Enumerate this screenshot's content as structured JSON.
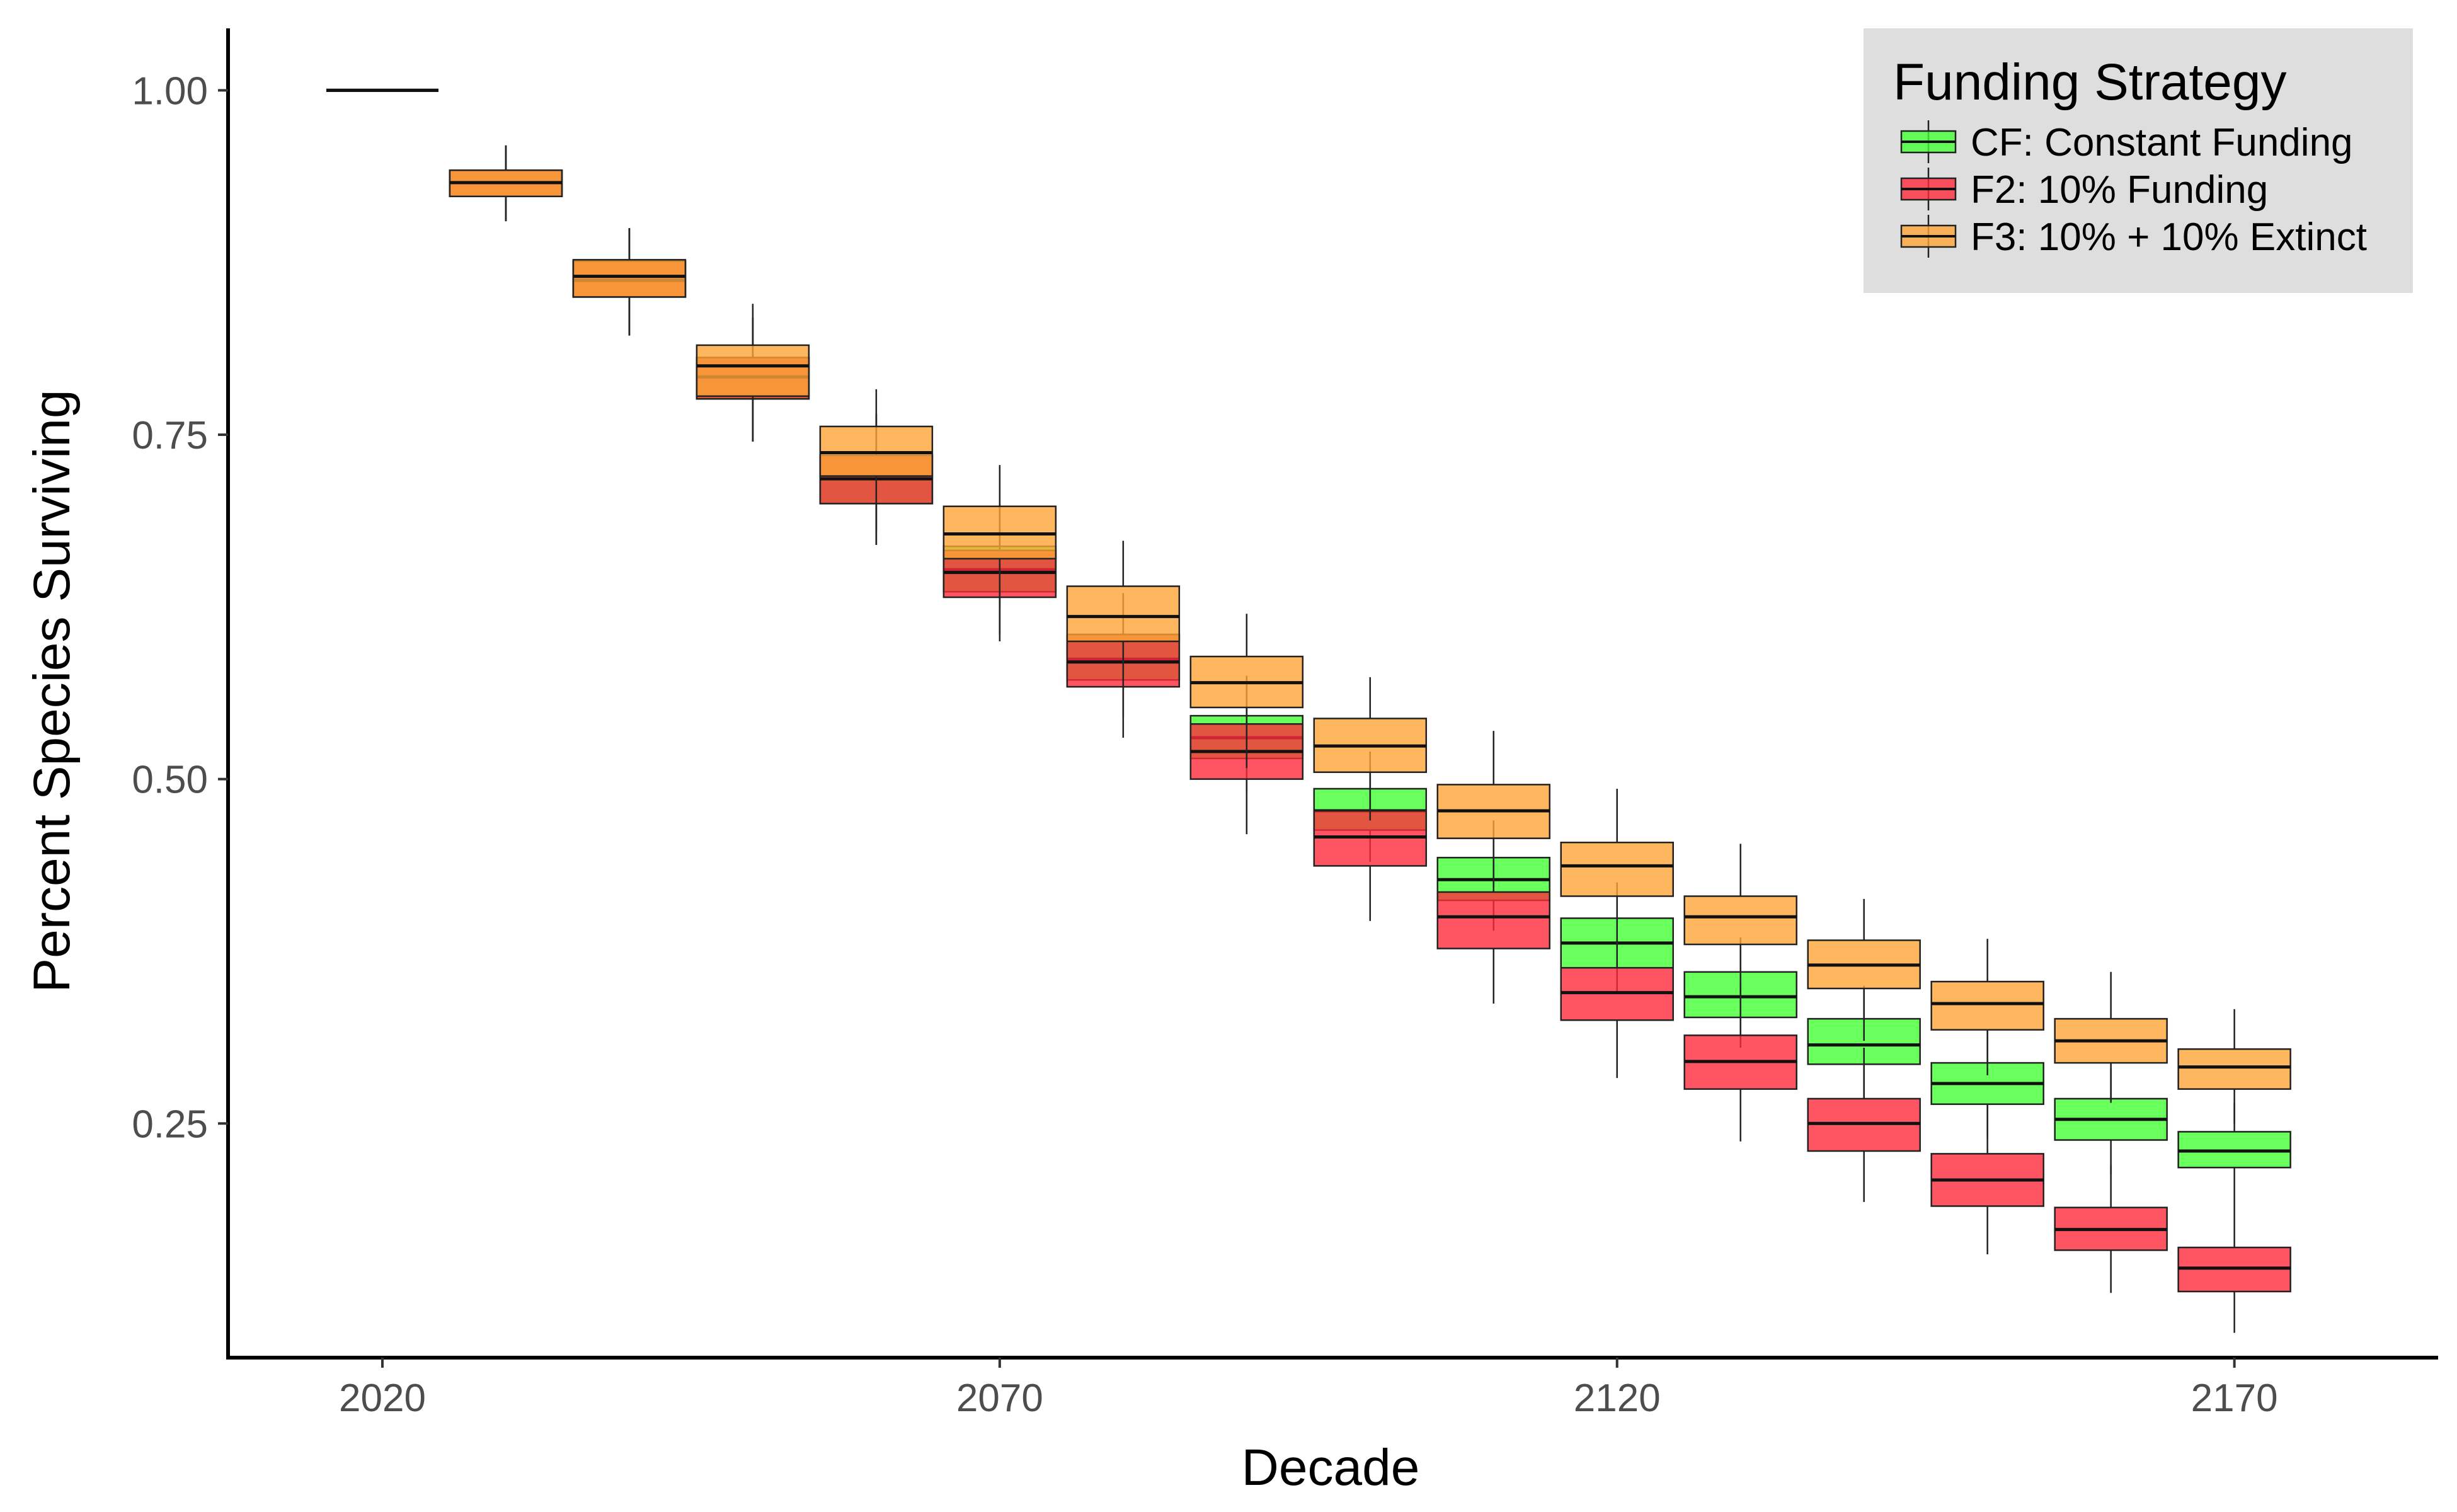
{
  "chart_data": {
    "type": "box",
    "xlabel": "Decade",
    "ylabel": "Percent Species Surviving",
    "x_ticks": [
      2020,
      2070,
      2120,
      2170
    ],
    "y_ticks": [
      "0.25",
      "0.50",
      "0.75",
      "1.00"
    ],
    "y_tick_values": [
      0.25,
      0.5,
      0.75,
      1.0
    ],
    "xlim": [
      2007.5,
      2186.5
    ],
    "ylim": [
      0.08,
      1.045
    ],
    "grid": false,
    "legend": {
      "title": "Funding Strategy",
      "position": "top-right",
      "entries": [
        "CF: Constant Funding",
        "F2: 10% Funding",
        "F3: 10% + 10% Extinct"
      ]
    },
    "colors": {
      "CF: Constant Funding": "#44ff33",
      "F2: 10% Funding": "#ff2b3b",
      "F3: 10% + 10% Extinct": "#ffa537"
    },
    "series": [
      {
        "name": "CF: Constant Funding",
        "boxes": [
          {
            "x": 2020,
            "min": 1.0,
            "q1": 1.0,
            "median": 1.0,
            "q3": 1.0,
            "max": 1.0
          },
          {
            "x": 2030,
            "min": 0.905,
            "q1": 0.923,
            "median": 0.933,
            "q3": 0.942,
            "max": 0.96
          },
          {
            "x": 2040,
            "min": 0.822,
            "q1": 0.85,
            "median": 0.862,
            "q3": 0.876,
            "max": 0.9
          },
          {
            "x": 2050,
            "min": 0.745,
            "q1": 0.776,
            "median": 0.792,
            "q3": 0.806,
            "max": 0.835
          },
          {
            "x": 2060,
            "min": 0.67,
            "q1": 0.7,
            "median": 0.718,
            "q3": 0.735,
            "max": 0.765
          },
          {
            "x": 2070,
            "min": 0.605,
            "q1": 0.636,
            "median": 0.652,
            "q3": 0.669,
            "max": 0.7
          },
          {
            "x": 2080,
            "min": 0.545,
            "q1": 0.572,
            "median": 0.587,
            "q3": 0.605,
            "max": 0.635
          },
          {
            "x": 2090,
            "min": 0.49,
            "q1": 0.515,
            "median": 0.53,
            "q3": 0.546,
            "max": 0.575
          },
          {
            "x": 2100,
            "min": 0.44,
            "q1": 0.463,
            "median": 0.477,
            "q3": 0.493,
            "max": 0.52
          },
          {
            "x": 2110,
            "min": 0.39,
            "q1": 0.412,
            "median": 0.427,
            "q3": 0.443,
            "max": 0.47
          },
          {
            "x": 2120,
            "min": 0.345,
            "q1": 0.363,
            "median": 0.381,
            "q3": 0.399,
            "max": 0.425
          },
          {
            "x": 2130,
            "min": 0.305,
            "q1": 0.327,
            "median": 0.342,
            "q3": 0.36,
            "max": 0.385
          },
          {
            "x": 2140,
            "min": 0.268,
            "q1": 0.293,
            "median": 0.307,
            "q3": 0.326,
            "max": 0.35
          },
          {
            "x": 2150,
            "min": 0.24,
            "q1": 0.264,
            "median": 0.279,
            "q3": 0.294,
            "max": 0.317
          },
          {
            "x": 2160,
            "min": 0.213,
            "q1": 0.238,
            "median": 0.253,
            "q3": 0.268,
            "max": 0.29
          },
          {
            "x": 2170,
            "min": 0.19,
            "q1": 0.218,
            "median": 0.23,
            "q3": 0.244,
            "max": 0.265
          }
        ]
      },
      {
        "name": "F2: 10% Funding",
        "boxes": [
          {
            "x": 2020,
            "min": 1.0,
            "q1": 1.0,
            "median": 1.0,
            "q3": 1.0,
            "max": 1.0
          },
          {
            "x": 2030,
            "min": 0.905,
            "q1": 0.923,
            "median": 0.933,
            "q3": 0.942,
            "max": 0.96
          },
          {
            "x": 2040,
            "min": 0.822,
            "q1": 0.85,
            "median": 0.862,
            "q3": 0.876,
            "max": 0.9
          },
          {
            "x": 2050,
            "min": 0.745,
            "q1": 0.776,
            "median": 0.792,
            "q3": 0.806,
            "max": 0.835
          },
          {
            "x": 2060,
            "min": 0.67,
            "q1": 0.7,
            "median": 0.718,
            "q3": 0.735,
            "max": 0.765
          },
          {
            "x": 2070,
            "min": 0.6,
            "q1": 0.632,
            "median": 0.65,
            "q3": 0.666,
            "max": 0.697
          },
          {
            "x": 2080,
            "min": 0.53,
            "q1": 0.567,
            "median": 0.585,
            "q3": 0.605,
            "max": 0.635
          },
          {
            "x": 2090,
            "min": 0.46,
            "q1": 0.5,
            "median": 0.52,
            "q3": 0.54,
            "max": 0.575
          },
          {
            "x": 2100,
            "min": 0.397,
            "q1": 0.437,
            "median": 0.458,
            "q3": 0.477,
            "max": 0.51
          },
          {
            "x": 2110,
            "min": 0.337,
            "q1": 0.377,
            "median": 0.4,
            "q3": 0.418,
            "max": 0.455
          },
          {
            "x": 2120,
            "min": 0.283,
            "q1": 0.325,
            "median": 0.345,
            "q3": 0.363,
            "max": 0.4
          },
          {
            "x": 2130,
            "min": 0.237,
            "q1": 0.275,
            "median": 0.295,
            "q3": 0.314,
            "max": 0.35
          },
          {
            "x": 2140,
            "min": 0.193,
            "q1": 0.23,
            "median": 0.25,
            "q3": 0.268,
            "max": 0.305
          },
          {
            "x": 2150,
            "min": 0.155,
            "q1": 0.19,
            "median": 0.209,
            "q3": 0.228,
            "max": 0.263
          },
          {
            "x": 2160,
            "min": 0.127,
            "q1": 0.158,
            "median": 0.173,
            "q3": 0.189,
            "max": 0.22
          },
          {
            "x": 2170,
            "min": 0.098,
            "q1": 0.128,
            "median": 0.145,
            "q3": 0.16,
            "max": 0.19
          }
        ]
      },
      {
        "name": "F3: 10% + 10% Extinct",
        "boxes": [
          {
            "x": 2020,
            "min": 1.0,
            "q1": 1.0,
            "median": 1.0,
            "q3": 1.0,
            "max": 1.0
          },
          {
            "x": 2030,
            "min": 0.905,
            "q1": 0.923,
            "median": 0.933,
            "q3": 0.942,
            "max": 0.96
          },
          {
            "x": 2040,
            "min": 0.822,
            "q1": 0.85,
            "median": 0.865,
            "q3": 0.877,
            "max": 0.9
          },
          {
            "x": 2050,
            "min": 0.745,
            "q1": 0.778,
            "median": 0.8,
            "q3": 0.815,
            "max": 0.845
          },
          {
            "x": 2060,
            "min": 0.68,
            "q1": 0.72,
            "median": 0.737,
            "q3": 0.756,
            "max": 0.783
          },
          {
            "x": 2070,
            "min": 0.625,
            "q1": 0.66,
            "median": 0.678,
            "q3": 0.698,
            "max": 0.728
          },
          {
            "x": 2080,
            "min": 0.565,
            "q1": 0.6,
            "median": 0.618,
            "q3": 0.64,
            "max": 0.673
          },
          {
            "x": 2090,
            "min": 0.508,
            "q1": 0.552,
            "median": 0.57,
            "q3": 0.589,
            "max": 0.62
          },
          {
            "x": 2100,
            "min": 0.47,
            "q1": 0.505,
            "median": 0.524,
            "q3": 0.544,
            "max": 0.574
          },
          {
            "x": 2110,
            "min": 0.42,
            "q1": 0.457,
            "median": 0.477,
            "q3": 0.496,
            "max": 0.535
          },
          {
            "x": 2120,
            "min": 0.385,
            "q1": 0.415,
            "median": 0.437,
            "q3": 0.454,
            "max": 0.493
          },
          {
            "x": 2130,
            "min": 0.345,
            "q1": 0.38,
            "median": 0.4,
            "q3": 0.415,
            "max": 0.453
          },
          {
            "x": 2140,
            "min": 0.31,
            "q1": 0.348,
            "median": 0.365,
            "q3": 0.383,
            "max": 0.413
          },
          {
            "x": 2150,
            "min": 0.285,
            "q1": 0.318,
            "median": 0.337,
            "q3": 0.353,
            "max": 0.384
          },
          {
            "x": 2160,
            "min": 0.265,
            "q1": 0.294,
            "median": 0.31,
            "q3": 0.326,
            "max": 0.36
          },
          {
            "x": 2170,
            "min": 0.25,
            "q1": 0.275,
            "median": 0.291,
            "q3": 0.304,
            "max": 0.333
          }
        ]
      }
    ]
  }
}
